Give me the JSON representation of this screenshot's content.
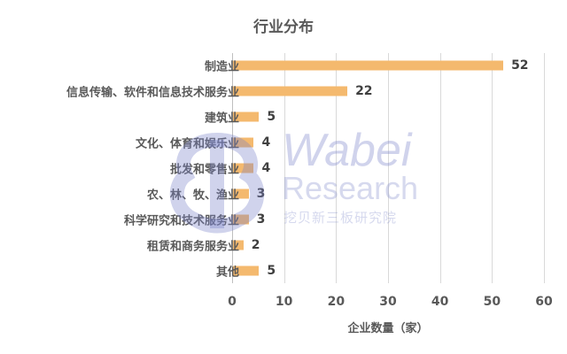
{
  "chart_data": {
    "type": "bar",
    "orientation": "horizontal",
    "title": "行业分布",
    "xlabel": "企业数量（家）",
    "ylabel": "",
    "categories": [
      "制造业",
      "信息传输、软件和信息技术服务业",
      "建筑业",
      "文化、体育和娱乐业",
      "批发和零售业",
      "农、林、牧、渔业",
      "科学研究和技术服务业",
      "租赁和商务服务业",
      "其他"
    ],
    "values": [
      52,
      22,
      5,
      4,
      4,
      3,
      3,
      2,
      5
    ],
    "xlim": [
      0,
      60
    ],
    "xticks": [
      "0",
      "10",
      "20",
      "30",
      "40",
      "50",
      "60"
    ],
    "grid": "vertical",
    "legend": "none",
    "data_labels": true,
    "bar_color": "#F4B96E"
  },
  "watermark": {
    "line1": "Wabei",
    "line2": "Research",
    "line3": "挖贝新三板研究院"
  }
}
